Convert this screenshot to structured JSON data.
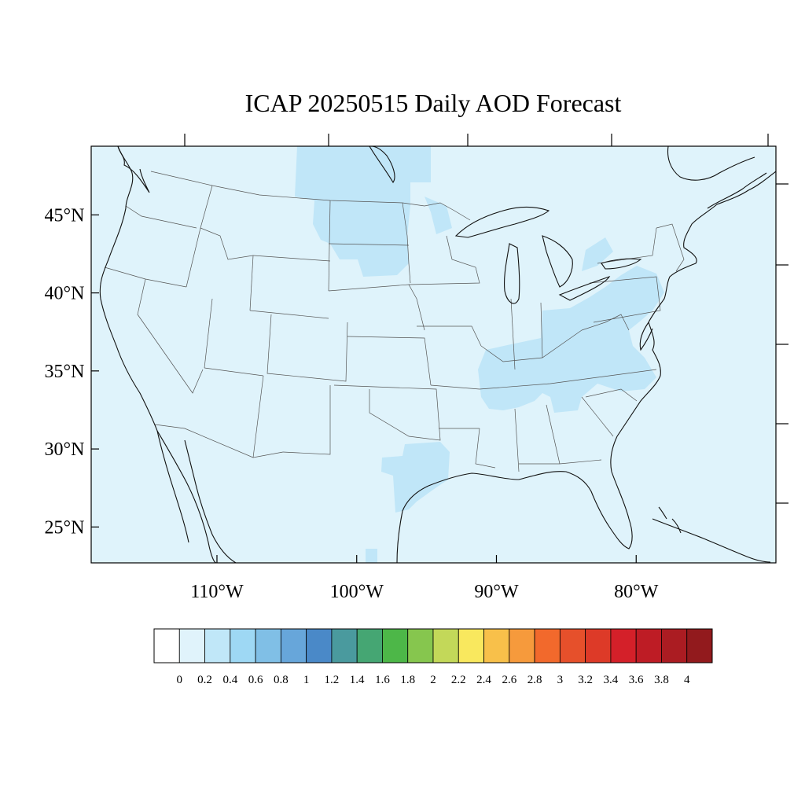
{
  "title": "ICAP 20250515 Daily AOD Forecast",
  "map": {
    "lon_range": [
      -119,
      -70
    ],
    "lat_range": [
      22.7,
      49.4
    ],
    "lat_ticks": [
      {
        "value": 45,
        "label": "45°N"
      },
      {
        "value": 40,
        "label": "40°N"
      },
      {
        "value": 35,
        "label": "35°N"
      },
      {
        "value": 30,
        "label": "30°N"
      },
      {
        "value": 25,
        "label": "25°N"
      }
    ],
    "lon_ticks": [
      {
        "value": -110,
        "label": "110°W"
      },
      {
        "value": -100,
        "label": "100°W"
      },
      {
        "value": -90,
        "label": "90°W"
      },
      {
        "value": -80,
        "label": "80°W"
      }
    ],
    "background_color": "#dff3fb",
    "aod_regions": [
      {
        "level": "0.2-0.4",
        "color": "#c0e6f8",
        "area": "Northern Plains / North Dakota"
      },
      {
        "level": "0.2-0.4",
        "color": "#c0e6f8",
        "area": "Ohio Valley / Tennessee"
      },
      {
        "level": "0.2-0.4",
        "color": "#c0e6f8",
        "area": "Pennsylvania / Mid-Atlantic"
      },
      {
        "level": "0.2-0.4",
        "color": "#c0e6f8",
        "area": "East Texas / Gulf Coast"
      }
    ]
  },
  "colorbar": {
    "labels": [
      "0",
      "0.2",
      "0.4",
      "0.6",
      "0.8",
      "1",
      "1.2",
      "1.4",
      "1.6",
      "1.8",
      "2",
      "2.2",
      "2.4",
      "2.6",
      "2.8",
      "3",
      "3.2",
      "3.4",
      "3.6",
      "3.8",
      "4"
    ],
    "colors": [
      "#ffffff",
      "#e0f3fb",
      "#c0e7f8",
      "#9ed8f4",
      "#80bfe6",
      "#67a6da",
      "#4a89c8",
      "#4a9a9e",
      "#45a673",
      "#4db748",
      "#86c64e",
      "#c3d859",
      "#f9e85e",
      "#f8c04a",
      "#f69a3c",
      "#f2692c",
      "#e6502b",
      "#dd3a28",
      "#d42029",
      "#be1c25",
      "#ab1c22",
      "#921a1d"
    ]
  }
}
